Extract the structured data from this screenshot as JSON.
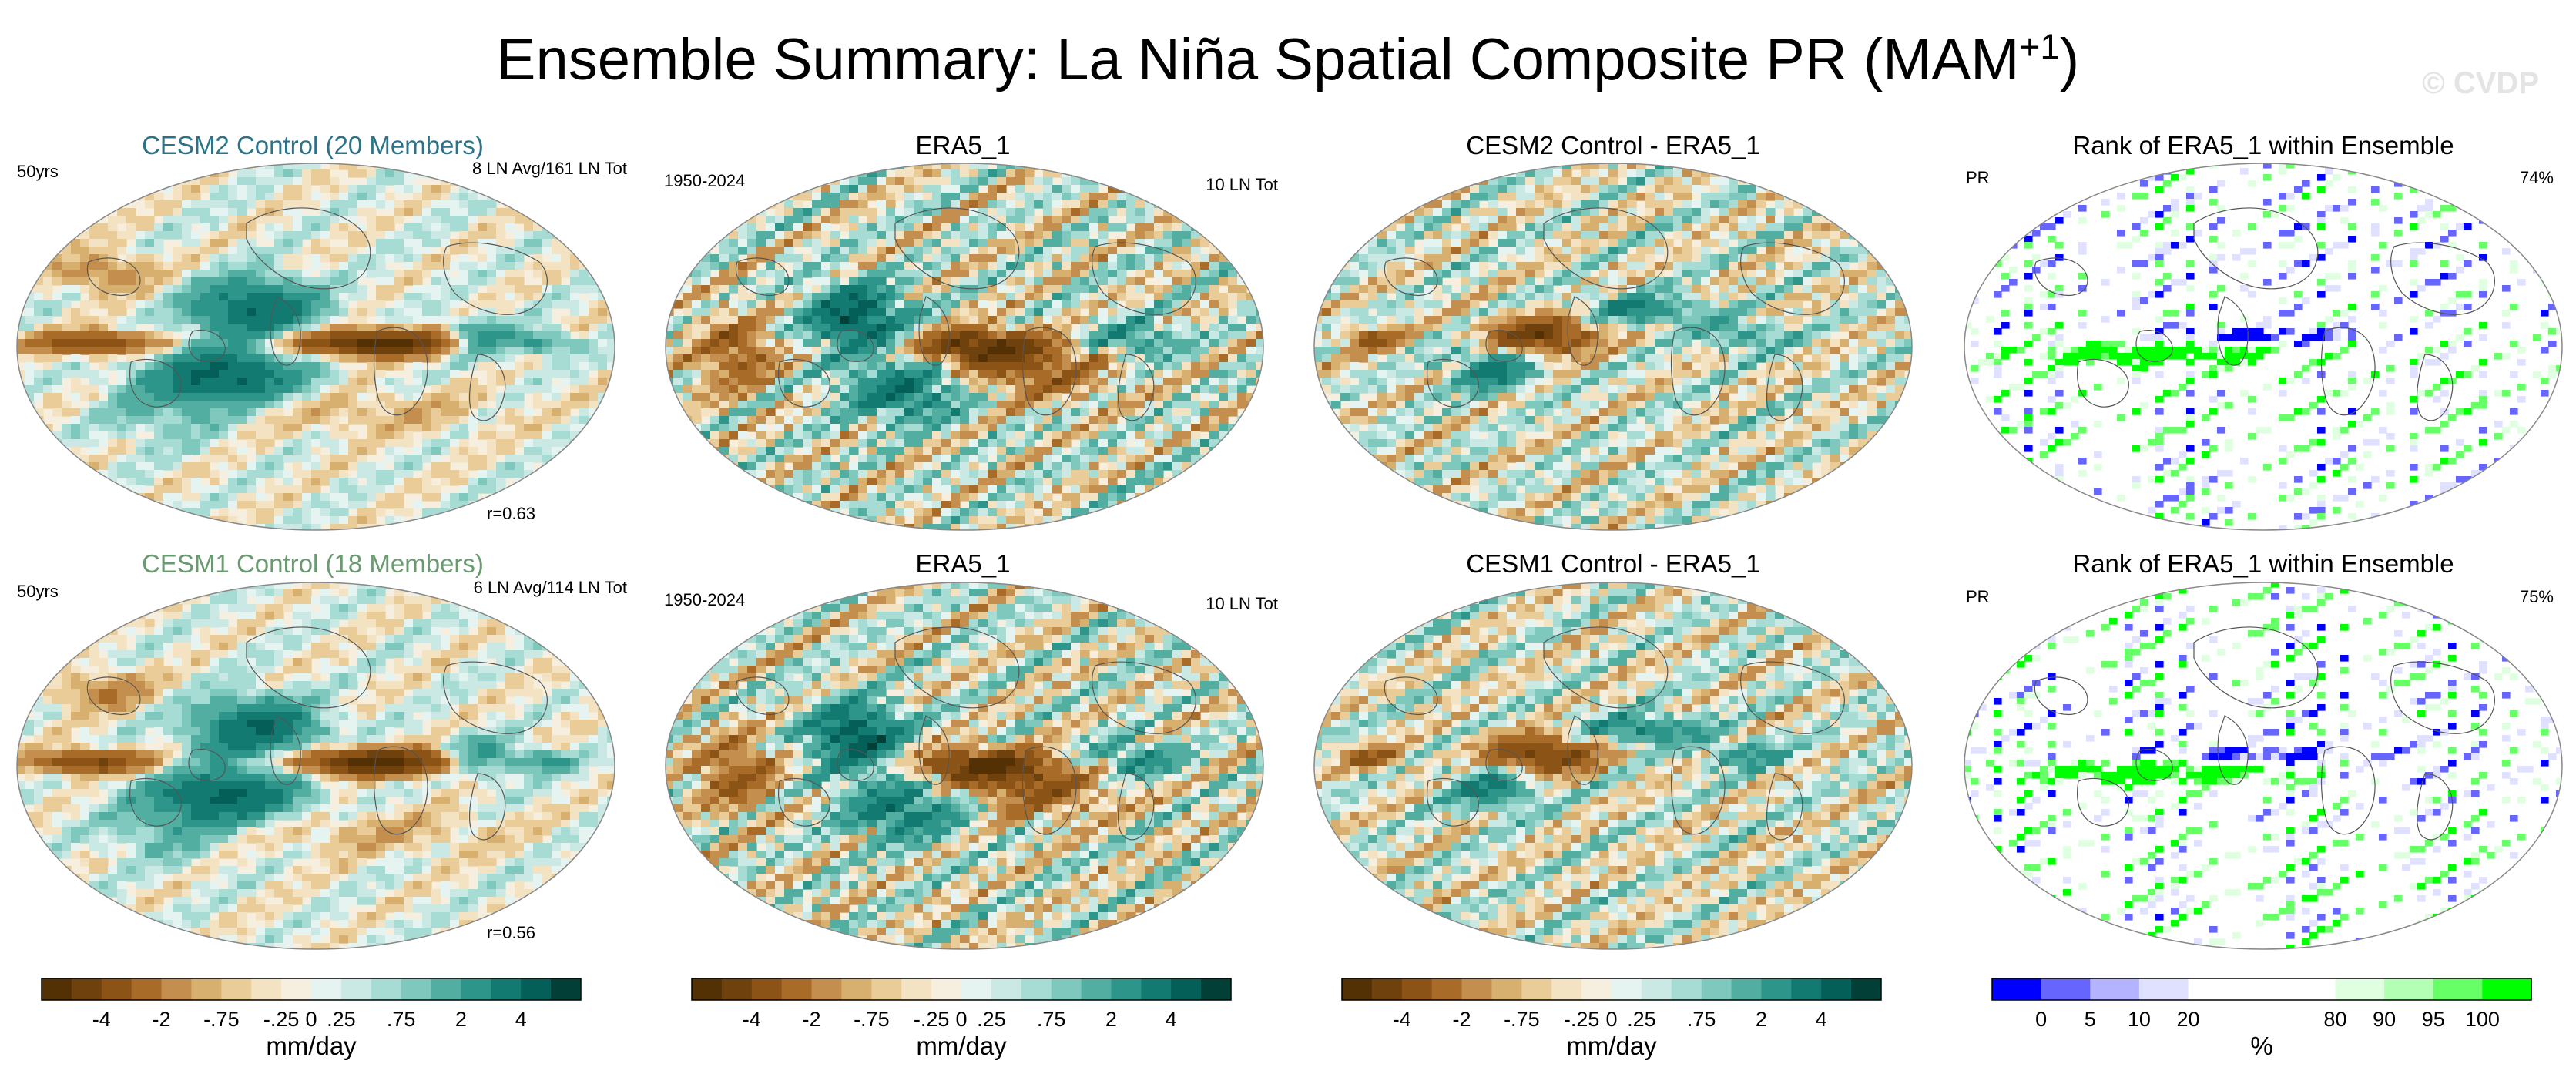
{
  "title": {
    "main": "Ensemble Summary: La Niña Spatial Composite PR (MAM",
    "sup": "+1",
    "close": ")"
  },
  "watermark": "© CVDP",
  "rows": [
    {
      "panels": [
        {
          "title": "CESM2 Control (20 Members)",
          "title_color": "#2a7388",
          "left": "50yrs",
          "right": "8 LN Avg/161 LN Tot",
          "corr": "r=0.63",
          "kind": "model"
        },
        {
          "title": "ERA5_1",
          "title_color": "#000000",
          "left": "1950-2024",
          "right": "10 LN Tot",
          "corr": "",
          "kind": "obs"
        },
        {
          "title": "CESM2 Control - ERA5_1",
          "title_color": "#000000",
          "left": "",
          "right": "",
          "corr": "",
          "kind": "diff"
        },
        {
          "title": "Rank of ERA5_1 within Ensemble",
          "title_color": "#000000",
          "left": "PR",
          "right": "74%",
          "corr": "",
          "kind": "rank"
        }
      ]
    },
    {
      "panels": [
        {
          "title": "CESM1 Control (18 Members)",
          "title_color": "#6a9a70",
          "left": "50yrs",
          "right": "6 LN Avg/114 LN Tot",
          "corr": "r=0.56",
          "kind": "model"
        },
        {
          "title": "ERA5_1",
          "title_color": "#000000",
          "left": "1950-2024",
          "right": "10 LN Tot",
          "corr": "",
          "kind": "obs"
        },
        {
          "title": "CESM1 Control - ERA5_1",
          "title_color": "#000000",
          "left": "",
          "right": "",
          "corr": "",
          "kind": "diff"
        },
        {
          "title": "Rank of ERA5_1 within Ensemble",
          "title_color": "#000000",
          "left": "PR",
          "right": "75%",
          "corr": "",
          "kind": "rank"
        }
      ]
    }
  ],
  "colorbars": [
    {
      "unit": "mm/day",
      "colors": [
        "#543005",
        "#6f420d",
        "#8c5317",
        "#a96c28",
        "#c48f4e",
        "#d7b06f",
        "#e9cc98",
        "#f3e3c2",
        "#f6efe0",
        "#e5f3f1",
        "#cae9e5",
        "#a7dcd4",
        "#7ec8bd",
        "#53aea2",
        "#2e958a",
        "#137a72",
        "#035f58",
        "#013f37"
      ],
      "ticks": [
        "-4",
        "-2",
        "-.75",
        "-.25",
        "0",
        ".25",
        ".75",
        "2",
        "4"
      ],
      "tick_bounds": [
        2,
        4,
        6,
        8,
        9,
        10,
        12,
        14,
        16
      ]
    },
    {
      "unit": "%",
      "colors": [
        "#0000ff",
        "#6666ff",
        "#b3b3ff",
        "#e0e0ff",
        "#ffffff",
        "#ffffff",
        "#ffffff",
        "#e0ffe0",
        "#b3ffb3",
        "#66ff66",
        "#00ff00"
      ],
      "ticks": [
        "0",
        "5",
        "10",
        "20",
        "80",
        "90",
        "95",
        "100"
      ],
      "tick_bounds": [
        1,
        2,
        3,
        4,
        7,
        8,
        9,
        10
      ]
    }
  ],
  "chart_data": [
    {
      "type": "heatmap",
      "title": "CESM2 Control (20 Members)",
      "variable": "PR",
      "season": "MAM+1",
      "units": "mm/day",
      "levels": [
        -4,
        -2,
        -0.75,
        -0.25,
        0,
        0.25,
        0.75,
        2,
        4
      ],
      "pattern_correlation": 0.63,
      "years": "50yrs",
      "events": "8 LN Avg/161 LN Tot"
    },
    {
      "type": "heatmap",
      "title": "ERA5_1",
      "variable": "PR",
      "season": "MAM+1",
      "units": "mm/day",
      "levels": [
        -4,
        -2,
        -0.75,
        -0.25,
        0,
        0.25,
        0.75,
        2,
        4
      ],
      "years": "1950-2024",
      "events": "10 LN Tot"
    },
    {
      "type": "heatmap",
      "title": "CESM2 Control - ERA5_1",
      "variable": "PR",
      "season": "MAM+1",
      "units": "mm/day",
      "levels": [
        -4,
        -2,
        -0.75,
        -0.25,
        0,
        0.25,
        0.75,
        2,
        4
      ]
    },
    {
      "type": "heatmap",
      "title": "Rank of ERA5_1 within Ensemble",
      "variable": "PR",
      "units": "%",
      "levels": [
        0,
        5,
        10,
        20,
        80,
        90,
        95,
        100
      ],
      "area_within_10_90": "74%"
    },
    {
      "type": "heatmap",
      "title": "CESM1 Control (18 Members)",
      "variable": "PR",
      "season": "MAM+1",
      "units": "mm/day",
      "levels": [
        -4,
        -2,
        -0.75,
        -0.25,
        0,
        0.25,
        0.75,
        2,
        4
      ],
      "pattern_correlation": 0.56,
      "years": "50yrs",
      "events": "6 LN Avg/114 LN Tot"
    },
    {
      "type": "heatmap",
      "title": "ERA5_1",
      "variable": "PR",
      "season": "MAM+1",
      "units": "mm/day",
      "levels": [
        -4,
        -2,
        -0.75,
        -0.25,
        0,
        0.25,
        0.75,
        2,
        4
      ],
      "years": "1950-2024",
      "events": "10 LN Tot"
    },
    {
      "type": "heatmap",
      "title": "CESM1 Control - ERA5_1",
      "variable": "PR",
      "season": "MAM+1",
      "units": "mm/day",
      "levels": [
        -4,
        -2,
        -0.75,
        -0.25,
        0,
        0.25,
        0.75,
        2,
        4
      ]
    },
    {
      "type": "heatmap",
      "title": "Rank of ERA5_1 within Ensemble",
      "variable": "PR",
      "units": "%",
      "levels": [
        0,
        5,
        10,
        20,
        80,
        90,
        95,
        100
      ],
      "area_within_10_90": "75%"
    }
  ]
}
